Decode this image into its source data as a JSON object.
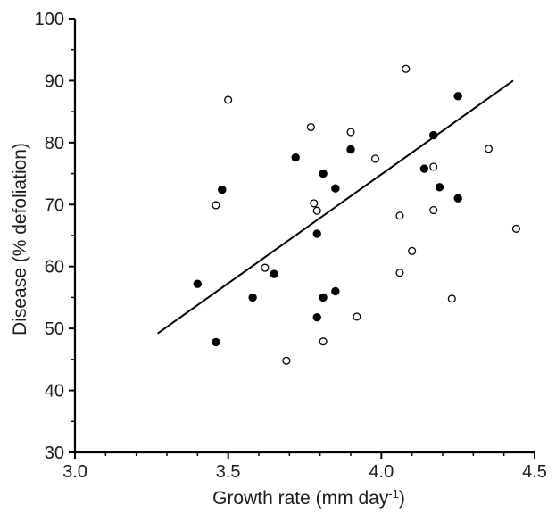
{
  "chart_data": {
    "type": "scatter",
    "xlabel": "Growth rate (mm day",
    "xlabel_superscript": "-1",
    "xlabel_suffix": ")",
    "ylabel": "Disease (% defoliation)",
    "xlim": [
      3.0,
      4.5
    ],
    "ylim": [
      30,
      100
    ],
    "x_ticks": [
      "3.0",
      "3.5",
      "4.0",
      "4.5"
    ],
    "y_ticks": [
      "30",
      "40",
      "50",
      "60",
      "70",
      "80",
      "90",
      "100"
    ],
    "grid": false,
    "legend": "none",
    "series": [
      {
        "marker": "filled-circle",
        "color": "#000000",
        "points": [
          [
            3.4,
            57.2
          ],
          [
            3.46,
            47.8
          ],
          [
            3.48,
            72.4
          ],
          [
            3.58,
            55.0
          ],
          [
            3.65,
            58.8
          ],
          [
            3.72,
            77.6
          ],
          [
            3.79,
            65.3
          ],
          [
            3.79,
            51.8
          ],
          [
            3.81,
            75.0
          ],
          [
            3.81,
            55.0
          ],
          [
            3.85,
            72.6
          ],
          [
            3.85,
            56.0
          ],
          [
            3.9,
            78.9
          ],
          [
            4.14,
            75.8
          ],
          [
            4.17,
            81.2
          ],
          [
            4.19,
            72.8
          ],
          [
            4.25,
            87.5
          ],
          [
            4.25,
            71.0
          ]
        ]
      },
      {
        "marker": "open-circle",
        "color": "#000000",
        "points": [
          [
            3.46,
            69.9
          ],
          [
            3.5,
            86.9
          ],
          [
            3.62,
            59.8
          ],
          [
            3.69,
            44.8
          ],
          [
            3.77,
            82.5
          ],
          [
            3.78,
            70.2
          ],
          [
            3.79,
            69.0
          ],
          [
            3.81,
            47.9
          ],
          [
            3.9,
            81.7
          ],
          [
            3.92,
            51.9
          ],
          [
            3.98,
            77.4
          ],
          [
            4.06,
            68.2
          ],
          [
            4.06,
            59.0
          ],
          [
            4.08,
            91.9
          ],
          [
            4.1,
            62.5
          ],
          [
            4.17,
            76.1
          ],
          [
            4.17,
            69.1
          ],
          [
            4.23,
            54.8
          ],
          [
            4.35,
            79.0
          ],
          [
            4.44,
            66.1
          ]
        ]
      }
    ],
    "regression_line": {
      "x": [
        3.27,
        4.43
      ],
      "y": [
        49.2,
        90.0
      ]
    }
  }
}
